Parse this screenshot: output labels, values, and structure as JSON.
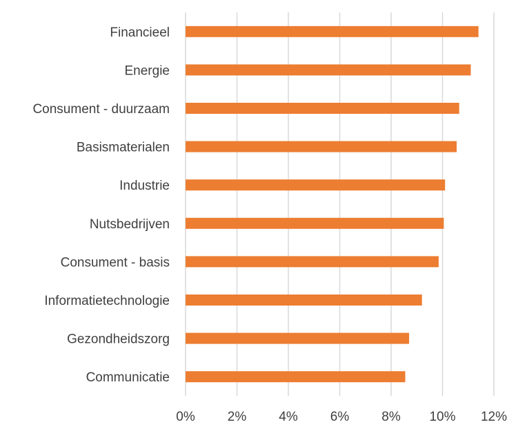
{
  "chart_data": {
    "type": "bar",
    "orientation": "horizontal",
    "categories": [
      "Financieel",
      "Energie",
      "Consument - duurzaam",
      "Basismaterialen",
      "Industrie",
      "Nutsbedrijven",
      "Consument - basis",
      "Informatietechnologie",
      "Gezondheidszorg",
      "Communicatie"
    ],
    "values": [
      11.4,
      11.1,
      10.65,
      10.55,
      10.1,
      10.05,
      9.85,
      9.2,
      8.7,
      8.55
    ],
    "xlim": [
      0,
      12
    ],
    "xticks": [
      0,
      2,
      4,
      6,
      8,
      10,
      12
    ],
    "tick_labels": [
      "0%",
      "2%",
      "4%",
      "6%",
      "8%",
      "10%",
      "12%"
    ],
    "grid": true,
    "bar_color": "#ED7D31",
    "grid_color": "#D9D9D9"
  }
}
